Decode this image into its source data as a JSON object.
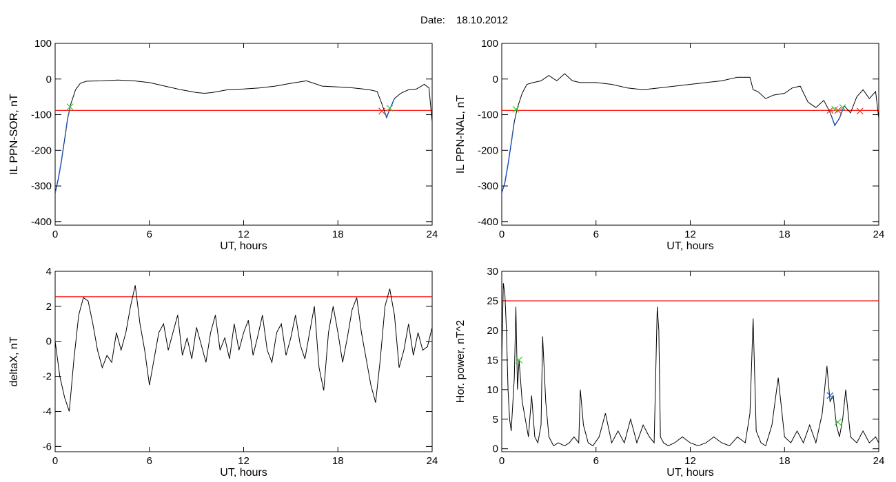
{
  "header": {
    "label": "Date:",
    "date": "18.10.2012"
  },
  "colors": {
    "trace": "#000000",
    "threshold": "#ff0000",
    "highlight": "#1f5fd6",
    "marker_start": "#33cc33",
    "marker_end": "#e03030",
    "marker_peak": "#1f5fd6"
  },
  "chart_data": [
    {
      "id": "sor",
      "type": "line",
      "ylabel": "IL PPN-SOR, nT",
      "xlabel": "UT, hours",
      "xlim": [
        0,
        24
      ],
      "ylim": [
        -410,
        100
      ],
      "xticks": [
        0,
        6,
        12,
        18,
        24
      ],
      "yticks": [
        -400,
        -300,
        -200,
        -100,
        0,
        100
      ],
      "threshold": -88,
      "series": [
        {
          "x": [
            0,
            0.2,
            0.4,
            0.6,
            0.8,
            1.0,
            1.3,
            1.6,
            2.0,
            3,
            4,
            5,
            6,
            7,
            8,
            9,
            9.5,
            10,
            11,
            12,
            13,
            14,
            15,
            16,
            17,
            18,
            19,
            20,
            20.5,
            20.8,
            21.0,
            21.1,
            21.3,
            21.6,
            22,
            22.5,
            23,
            23.5,
            23.8,
            24
          ],
          "y": [
            -320,
            -280,
            -230,
            -170,
            -110,
            -70,
            -30,
            -12,
            -6,
            -5,
            -3,
            -5,
            -10,
            -20,
            -30,
            -38,
            -40,
            -38,
            -30,
            -28,
            -25,
            -20,
            -12,
            -5,
            -20,
            -22,
            -25,
            -30,
            -35,
            -70,
            -95,
            -108,
            -85,
            -55,
            -40,
            -30,
            -28,
            -15,
            -25,
            -120
          ]
        }
      ],
      "highlights": [
        [
          0,
          1.0
        ],
        [
          20.9,
          21.6
        ]
      ],
      "markers": [
        {
          "type": "start",
          "x": 0.95,
          "y": -78
        },
        {
          "type": "end",
          "x": 20.8,
          "y": -90
        },
        {
          "type": "start",
          "x": 21.3,
          "y": -82
        }
      ]
    },
    {
      "id": "nal",
      "type": "line",
      "ylabel": "IL PPN-NAL, nT",
      "xlabel": "UT, hours",
      "xlim": [
        0,
        24
      ],
      "ylim": [
        -410,
        100
      ],
      "xticks": [
        0,
        6,
        12,
        18,
        24
      ],
      "yticks": [
        -400,
        -300,
        -200,
        -100,
        0,
        100
      ],
      "threshold": -88,
      "series": [
        {
          "x": [
            0,
            0.2,
            0.4,
            0.6,
            0.8,
            1.0,
            1.3,
            1.6,
            2.0,
            2.5,
            3,
            3.5,
            4,
            4.5,
            5,
            6,
            7,
            8,
            9,
            10,
            11,
            12,
            13,
            14,
            15,
            15.8,
            16.0,
            16.3,
            16.8,
            17.3,
            18,
            18.5,
            19,
            19.5,
            20,
            20.5,
            20.8,
            21.0,
            21.2,
            21.5,
            21.8,
            22.2,
            22.6,
            23.0,
            23.4,
            23.8,
            24
          ],
          "y": [
            -320,
            -290,
            -240,
            -180,
            -120,
            -80,
            -40,
            -15,
            -10,
            -5,
            10,
            -5,
            15,
            -5,
            -10,
            -10,
            -15,
            -25,
            -30,
            -25,
            -20,
            -15,
            -10,
            -5,
            5,
            5,
            -30,
            -35,
            -55,
            -45,
            -40,
            -25,
            -20,
            -65,
            -80,
            -60,
            -85,
            -105,
            -130,
            -110,
            -75,
            -95,
            -50,
            -30,
            -55,
            -35,
            -110
          ]
        }
      ],
      "highlights": [
        [
          0,
          0.9
        ],
        [
          20.9,
          22.0
        ]
      ],
      "markers": [
        {
          "type": "start",
          "x": 0.9,
          "y": -85
        },
        {
          "type": "end",
          "x": 20.9,
          "y": -88
        },
        {
          "type": "start",
          "x": 21.2,
          "y": -85
        },
        {
          "type": "end",
          "x": 21.4,
          "y": -88
        },
        {
          "type": "start",
          "x": 21.7,
          "y": -80
        },
        {
          "type": "end",
          "x": 22.8,
          "y": -90
        }
      ]
    },
    {
      "id": "deltax",
      "type": "line",
      "ylabel": "deltaX, nT",
      "xlabel": "UT, hours",
      "xlim": [
        0,
        24
      ],
      "ylim": [
        -6.3,
        4
      ],
      "xticks": [
        0,
        6,
        12,
        18,
        24
      ],
      "yticks": [
        -6,
        -4,
        -2,
        0,
        2,
        4
      ],
      "threshold": 2.55,
      "series": [
        {
          "x": [
            0,
            0.3,
            0.6,
            0.9,
            1.2,
            1.5,
            1.8,
            2.1,
            2.4,
            2.7,
            3.0,
            3.3,
            3.6,
            3.9,
            4.2,
            4.5,
            4.8,
            5.1,
            5.4,
            5.7,
            6.0,
            6.3,
            6.6,
            6.9,
            7.2,
            7.5,
            7.8,
            8.1,
            8.4,
            8.7,
            9.0,
            9.3,
            9.6,
            9.9,
            10.2,
            10.5,
            10.8,
            11.1,
            11.4,
            11.7,
            12.0,
            12.3,
            12.6,
            12.9,
            13.2,
            13.5,
            13.8,
            14.1,
            14.4,
            14.7,
            15.0,
            15.3,
            15.6,
            15.9,
            16.2,
            16.5,
            16.8,
            17.1,
            17.4,
            17.7,
            18.0,
            18.3,
            18.6,
            18.9,
            19.2,
            19.5,
            19.8,
            20.1,
            20.4,
            20.7,
            21.0,
            21.3,
            21.6,
            21.9,
            22.2,
            22.5,
            22.8,
            23.1,
            23.4,
            23.7,
            24
          ],
          "y": [
            0,
            -2.0,
            -3.2,
            -4.0,
            -1.0,
            1.5,
            2.5,
            2.3,
            1.0,
            -0.5,
            -1.5,
            -0.8,
            -1.2,
            0.5,
            -0.5,
            0.5,
            2.0,
            3.2,
            1.0,
            -0.5,
            -2.5,
            -1.0,
            0.5,
            1.0,
            -0.5,
            0.5,
            1.5,
            -0.8,
            0.2,
            -1.0,
            0.8,
            -0.2,
            -1.2,
            0.5,
            1.5,
            -0.5,
            0.2,
            -1.0,
            1.0,
            -0.5,
            0.5,
            1.2,
            -0.8,
            0.3,
            1.5,
            -0.5,
            -1.2,
            0.5,
            1.0,
            -0.8,
            0.2,
            1.5,
            -0.2,
            -1.0,
            0.5,
            2.0,
            -1.5,
            -2.8,
            0.5,
            2.0,
            0.5,
            -1.2,
            0.2,
            1.8,
            2.5,
            0.5,
            -1.0,
            -2.5,
            -3.5,
            -1.0,
            2.0,
            3.0,
            1.5,
            -1.5,
            -0.5,
            1.0,
            -0.8,
            0.5,
            -0.5,
            -0.3,
            0.8
          ]
        }
      ],
      "highlights": [],
      "markers": []
    },
    {
      "id": "power",
      "type": "line",
      "ylabel": "Hor. power, nT^2",
      "xlabel": "UT, hours",
      "xlim": [
        0,
        24
      ],
      "ylim": [
        -0.5,
        30
      ],
      "xticks": [
        0,
        6,
        12,
        18,
        24
      ],
      "yticks": [
        0,
        5,
        10,
        15,
        20,
        25,
        30
      ],
      "threshold": 25,
      "series": [
        {
          "x": [
            0,
            0.1,
            0.2,
            0.3,
            0.4,
            0.5,
            0.6,
            0.8,
            0.9,
            1.0,
            1.1,
            1.3,
            1.5,
            1.7,
            1.9,
            2.1,
            2.3,
            2.5,
            2.6,
            2.8,
            3.0,
            3.3,
            3.6,
            4.0,
            4.3,
            4.6,
            4.9,
            5.0,
            5.2,
            5.5,
            5.8,
            6.2,
            6.6,
            7.0,
            7.4,
            7.8,
            8.2,
            8.6,
            9.0,
            9.4,
            9.7,
            9.9,
            10.0,
            10.1,
            10.3,
            10.6,
            11.0,
            11.5,
            12.0,
            12.5,
            13.0,
            13.5,
            14.0,
            14.5,
            15.0,
            15.5,
            15.8,
            16.0,
            16.2,
            16.5,
            16.8,
            17.2,
            17.6,
            18.0,
            18.4,
            18.8,
            19.2,
            19.6,
            20.0,
            20.4,
            20.7,
            20.9,
            21.1,
            21.3,
            21.5,
            21.7,
            21.9,
            22.2,
            22.6,
            23.0,
            23.4,
            23.8,
            24
          ],
          "y": [
            15,
            28,
            26,
            20,
            10,
            5,
            3,
            12,
            24,
            10,
            15,
            8,
            5,
            2,
            9,
            2,
            1,
            4,
            19,
            8,
            2,
            0.5,
            1,
            0.5,
            1,
            2,
            1,
            10,
            4,
            1,
            0.5,
            2,
            6,
            1,
            3,
            1,
            5,
            1,
            4,
            2,
            1,
            24,
            20,
            2,
            1,
            0.5,
            1,
            2,
            1,
            0.5,
            1,
            2,
            1,
            0.5,
            2,
            1,
            6,
            22,
            3,
            1,
            0.5,
            4,
            12,
            2,
            1,
            3,
            1,
            4,
            1,
            6,
            14,
            8,
            9,
            4,
            2,
            5,
            10,
            2,
            1,
            3,
            1,
            2,
            1
          ]
        }
      ],
      "highlights": [],
      "markers": [
        {
          "type": "start",
          "x": 1.1,
          "y": 15
        },
        {
          "type": "peak",
          "x": 20.9,
          "y": 9
        },
        {
          "type": "start",
          "x": 21.4,
          "y": 4.5
        }
      ]
    }
  ]
}
